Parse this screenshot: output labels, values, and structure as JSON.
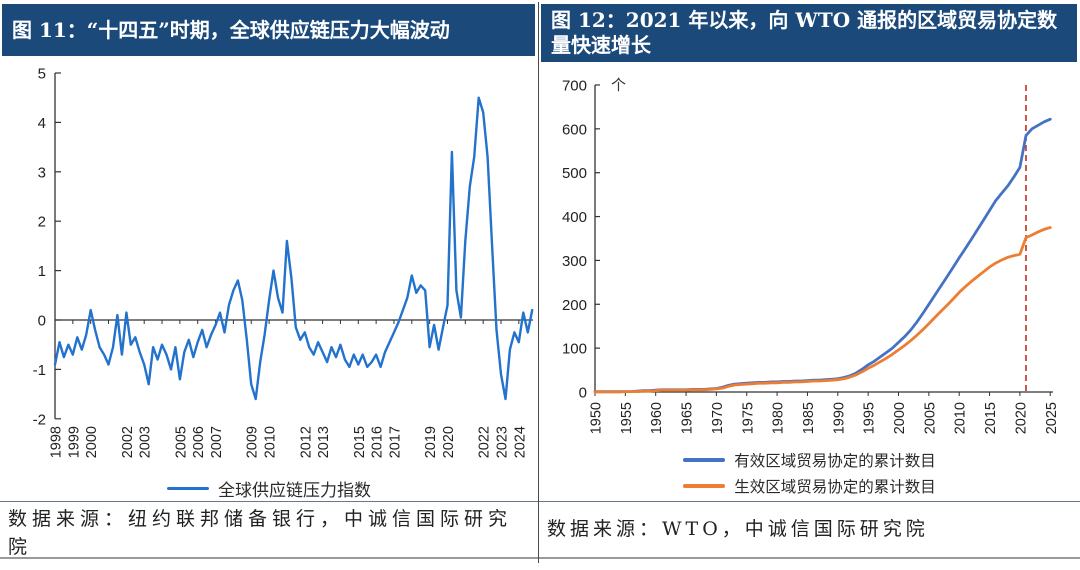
{
  "page": {
    "panels": [
      {
        "title": "图 11：“十四五”时期，全球供应链压力大幅波动",
        "source": "数据来源：纽约联邦储备银行，中诚信国际研究院"
      },
      {
        "title": "图 12：2021 年以来，向 WTO 通报的区域贸易协定数量快速增长",
        "source": "数据来源：WTO，中诚信国际研究院"
      }
    ],
    "colors": {
      "header_bg": "#1B4A7A",
      "header_text": "#FFFFFF",
      "gscpi_line": "#2272CE",
      "rta_notified_line": "#4472C4",
      "rta_inforce_line": "#ED7D31",
      "vline_red": "#C23B2B",
      "axis": "#333333"
    }
  },
  "chart_data": [
    {
      "id": "gscpi",
      "type": "line",
      "title": "“十四五”时期，全球供应链压力大幅波动",
      "x_start": 1998.0,
      "x_step": 0.25,
      "ylim": [
        -2,
        5
      ],
      "y_ticks": [
        5,
        4,
        3,
        2,
        1,
        0,
        -1,
        -2
      ],
      "x_ticks": [
        1998,
        1999,
        2000,
        2002,
        2003,
        2005,
        2006,
        2007,
        2009,
        2010,
        2012,
        2013,
        2015,
        2016,
        2017,
        2019,
        2020,
        2022,
        2023,
        2024
      ],
      "grid": false,
      "legend_position": "bottom",
      "legend": [
        {
          "label": "全球供应链压力指数",
          "color": "#2272CE"
        }
      ],
      "values": [
        -0.9,
        -0.45,
        -0.75,
        -0.5,
        -0.7,
        -0.35,
        -0.6,
        -0.3,
        0.2,
        -0.2,
        -0.55,
        -0.7,
        -0.9,
        -0.55,
        0.1,
        -0.7,
        0.15,
        -0.5,
        -0.35,
        -0.65,
        -0.9,
        -1.3,
        -0.55,
        -0.8,
        -0.5,
        -0.7,
        -1.0,
        -0.55,
        -1.2,
        -0.65,
        -0.4,
        -0.75,
        -0.45,
        -0.2,
        -0.55,
        -0.3,
        -0.1,
        0.15,
        -0.25,
        0.3,
        0.6,
        0.8,
        0.4,
        -0.4,
        -1.3,
        -1.6,
        -0.85,
        -0.3,
        0.4,
        1.0,
        0.45,
        0.15,
        1.6,
        0.85,
        -0.15,
        -0.4,
        -0.25,
        -0.55,
        -0.7,
        -0.45,
        -0.65,
        -0.85,
        -0.55,
        -0.75,
        -0.5,
        -0.8,
        -0.95,
        -0.7,
        -0.9,
        -0.7,
        -0.95,
        -0.85,
        -0.7,
        -0.95,
        -0.65,
        -0.45,
        -0.25,
        -0.05,
        0.2,
        0.45,
        0.9,
        0.55,
        0.7,
        0.6,
        -0.55,
        -0.1,
        -0.6,
        -0.15,
        0.3,
        3.4,
        0.6,
        0.05,
        1.6,
        2.7,
        3.3,
        4.5,
        4.2,
        3.3,
        1.5,
        -0.2,
        -1.1,
        -1.6,
        -0.6,
        -0.25,
        -0.45,
        0.15,
        -0.25,
        0.2
      ]
    },
    {
      "id": "rta",
      "type": "line",
      "title": "2021 年以来，向 WTO 通报的区域贸易协定数量快速增长",
      "unit_label": "个",
      "x_start": 1950,
      "x_step": 1,
      "ylim": [
        0,
        700
      ],
      "y_ticks": [
        700,
        600,
        500,
        400,
        300,
        200,
        100,
        0
      ],
      "x_ticks": [
        1950,
        1955,
        1960,
        1965,
        1970,
        1975,
        1980,
        1985,
        1990,
        1995,
        2000,
        2005,
        2010,
        2015,
        2020,
        2025
      ],
      "grid": false,
      "legend_position": "bottom",
      "vline": {
        "year": 2021,
        "color": "#C23B2B",
        "style": "dashed"
      },
      "series": [
        {
          "name": "有效区域贸易协定的累计数目",
          "color": "#4472C4",
          "values": [
            1,
            1,
            1,
            1,
            1,
            1,
            1,
            2,
            3,
            3,
            4,
            5,
            5,
            5,
            5,
            5,
            6,
            6,
            6,
            7,
            8,
            11,
            15,
            18,
            19,
            20,
            21,
            22,
            22,
            23,
            23,
            24,
            24,
            25,
            25,
            26,
            27,
            27,
            28,
            29,
            30,
            33,
            37,
            43,
            52,
            62,
            70,
            80,
            90,
            100,
            113,
            126,
            141,
            159,
            179,
            200,
            221,
            242,
            263,
            284,
            306,
            327,
            348,
            370,
            392,
            414,
            436,
            453,
            470,
            490,
            512,
            585,
            600,
            608,
            616,
            622
          ]
        },
        {
          "name": "生效区域贸易协定的累计数目",
          "color": "#ED7D31",
          "values": [
            0,
            0,
            0,
            0,
            0,
            1,
            1,
            1,
            2,
            2,
            3,
            4,
            4,
            4,
            4,
            4,
            5,
            5,
            5,
            6,
            7,
            9,
            13,
            16,
            17,
            18,
            19,
            20,
            20,
            21,
            21,
            22,
            22,
            23,
            23,
            24,
            25,
            25,
            26,
            27,
            28,
            30,
            34,
            39,
            46,
            54,
            61,
            69,
            77,
            86,
            96,
            106,
            117,
            129,
            142,
            156,
            170,
            184,
            198,
            212,
            227,
            240,
            252,
            263,
            274,
            285,
            294,
            301,
            307,
            311,
            314,
            352,
            358,
            365,
            371,
            375
          ]
        }
      ]
    }
  ]
}
